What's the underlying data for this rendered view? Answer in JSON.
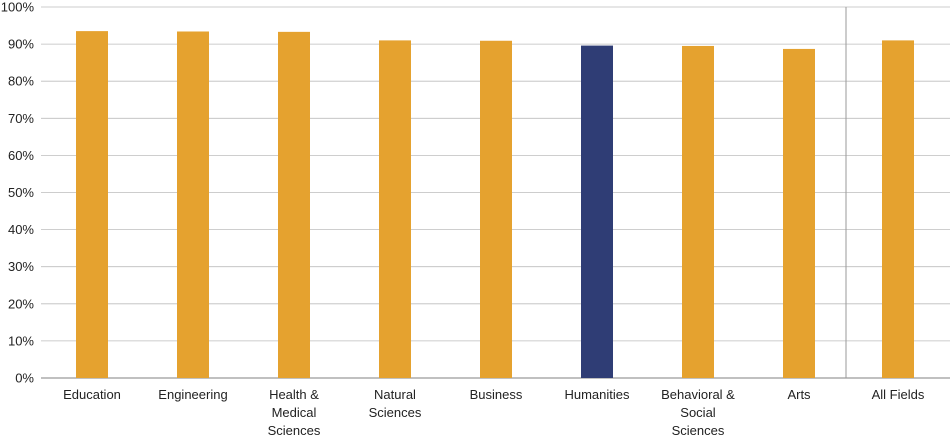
{
  "chart_data": {
    "type": "bar",
    "categories": [
      [
        "Education"
      ],
      [
        "Engineering"
      ],
      [
        "Health &",
        "Medical",
        "Sciences"
      ],
      [
        "Natural",
        "Sciences"
      ],
      [
        "Business"
      ],
      [
        "Humanities"
      ],
      [
        "Behavioral &",
        "Social",
        "Sciences"
      ],
      [
        "Arts"
      ],
      [
        "All Fields"
      ]
    ],
    "values": [
      93.5,
      93.4,
      93.3,
      91.0,
      90.9,
      89.6,
      89.5,
      88.7,
      91.0
    ],
    "highlight_index": 5,
    "y_ticks": [
      "0%",
      "10%",
      "20%",
      "30%",
      "40%",
      "50%",
      "60%",
      "70%",
      "80%",
      "90%",
      "100%"
    ],
    "ylim": [
      0,
      100
    ],
    "grid": true,
    "separator_before_last": true,
    "colors": {
      "bar": "#E5A22F",
      "highlight": "#2F3D75",
      "grid": "#BDBDBD",
      "axis": "#9A9A9A"
    }
  }
}
